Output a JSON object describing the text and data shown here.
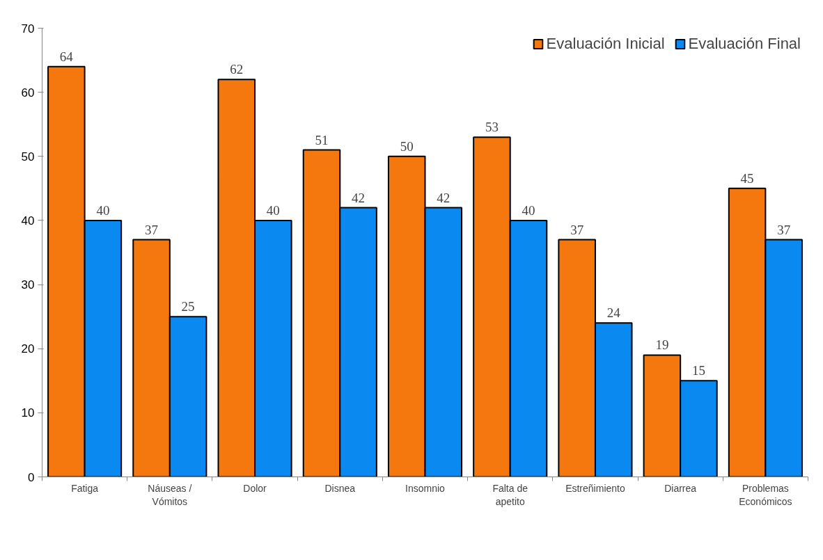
{
  "chart_data": {
    "type": "bar",
    "categories": [
      "Fatiga",
      "Náuseas /\nVómitos",
      "Dolor",
      "Disnea",
      "Insomnio",
      "Falta de\napetito",
      "Estreñimiento",
      "Diarrea",
      "Problemas\nEconómicos"
    ],
    "series": [
      {
        "name": "Evaluación Inicial",
        "color": "#f5780f",
        "values": [
          64,
          37,
          62,
          51,
          50,
          53,
          37,
          19,
          45
        ]
      },
      {
        "name": "Evaluación Final",
        "color": "#0a8af0",
        "values": [
          40,
          25,
          40,
          42,
          42,
          40,
          24,
          15,
          37
        ]
      }
    ],
    "ylim": [
      0,
      70
    ],
    "yticks": [
      0,
      10,
      20,
      30,
      40,
      50,
      60,
      70
    ],
    "grid": false,
    "legend": "top right",
    "data_labels": true
  }
}
